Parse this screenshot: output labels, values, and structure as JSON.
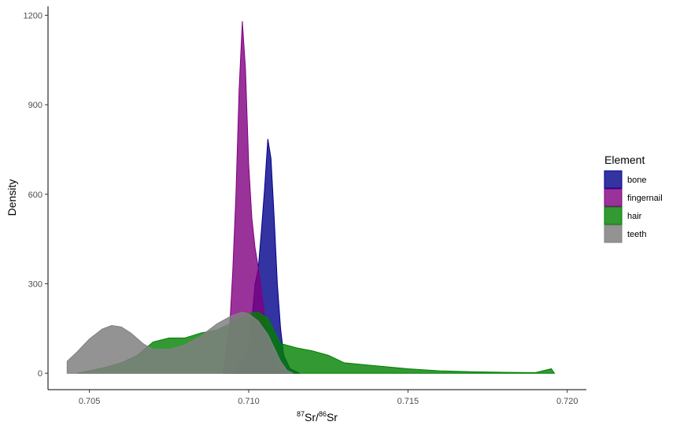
{
  "chart_data": {
    "type": "area",
    "subtype": "density",
    "xlabel": {
      "base": "Sr/",
      "base2": "Sr",
      "sup1": "87",
      "sup2": "86"
    },
    "ylabel": "Density",
    "xlim": [
      0.7037,
      0.7206
    ],
    "ylim": [
      -55,
      1230
    ],
    "x_ticks": [
      0.705,
      0.71,
      0.715,
      0.72
    ],
    "x_tick_labels": [
      "0.705",
      "0.710",
      "0.715",
      "0.720"
    ],
    "y_ticks": [
      0,
      300,
      600,
      900,
      1200
    ],
    "y_tick_labels": [
      "0",
      "300",
      "600",
      "900",
      "1200"
    ],
    "grid": false,
    "legend": {
      "title": "Element",
      "position": "right",
      "entries": [
        "bone",
        "fingernail",
        "hair",
        "teeth"
      ]
    },
    "series": [
      {
        "name": "bone",
        "color": "#00008B",
        "opacity": 0.8,
        "points": [
          [
            0.7095,
            0
          ],
          [
            0.7098,
            40
          ],
          [
            0.71,
            90
          ],
          [
            0.7101,
            180
          ],
          [
            0.7102,
            300
          ],
          [
            0.7103,
            350
          ],
          [
            0.7104,
            480
          ],
          [
            0.7105,
            620
          ],
          [
            0.7106,
            785
          ],
          [
            0.7107,
            720
          ],
          [
            0.7108,
            520
          ],
          [
            0.7109,
            300
          ],
          [
            0.711,
            150
          ],
          [
            0.7111,
            60
          ],
          [
            0.7113,
            15
          ],
          [
            0.7116,
            0
          ]
        ]
      },
      {
        "name": "fingernail",
        "color": "#800080",
        "opacity": 0.8,
        "points": [
          [
            0.7092,
            0
          ],
          [
            0.7093,
            80
          ],
          [
            0.7094,
            150
          ],
          [
            0.7095,
            340
          ],
          [
            0.7096,
            600
          ],
          [
            0.7097,
            950
          ],
          [
            0.7098,
            1180
          ],
          [
            0.7099,
            1020
          ],
          [
            0.71,
            700
          ],
          [
            0.7101,
            520
          ],
          [
            0.7102,
            420
          ],
          [
            0.7103,
            355
          ],
          [
            0.7104,
            280
          ],
          [
            0.7105,
            190
          ],
          [
            0.7106,
            110
          ],
          [
            0.7107,
            60
          ],
          [
            0.7108,
            30
          ],
          [
            0.711,
            10
          ],
          [
            0.7112,
            0
          ]
        ]
      },
      {
        "name": "hair",
        "color": "#008000",
        "opacity": 0.8,
        "points": [
          [
            0.7046,
            0
          ],
          [
            0.705,
            8
          ],
          [
            0.7055,
            20
          ],
          [
            0.706,
            35
          ],
          [
            0.7065,
            60
          ],
          [
            0.707,
            105
          ],
          [
            0.7075,
            118
          ],
          [
            0.708,
            118
          ],
          [
            0.7085,
            135
          ],
          [
            0.709,
            145
          ],
          [
            0.7095,
            170
          ],
          [
            0.71,
            200
          ],
          [
            0.7103,
            205
          ],
          [
            0.7106,
            185
          ],
          [
            0.711,
            100
          ],
          [
            0.7115,
            85
          ],
          [
            0.712,
            75
          ],
          [
            0.7125,
            60
          ],
          [
            0.713,
            35
          ],
          [
            0.714,
            25
          ],
          [
            0.715,
            15
          ],
          [
            0.716,
            8
          ],
          [
            0.717,
            5
          ],
          [
            0.718,
            3
          ],
          [
            0.719,
            2
          ],
          [
            0.7195,
            15
          ],
          [
            0.7196,
            0
          ]
        ]
      },
      {
        "name": "teeth",
        "color": "#808080",
        "opacity": 0.85,
        "points": [
          [
            0.7043,
            0
          ],
          [
            0.7043,
            40
          ],
          [
            0.7046,
            70
          ],
          [
            0.705,
            115
          ],
          [
            0.7054,
            148
          ],
          [
            0.7057,
            160
          ],
          [
            0.706,
            155
          ],
          [
            0.7063,
            135
          ],
          [
            0.7067,
            98
          ],
          [
            0.707,
            80
          ],
          [
            0.7075,
            80
          ],
          [
            0.708,
            95
          ],
          [
            0.7085,
            125
          ],
          [
            0.709,
            165
          ],
          [
            0.7095,
            195
          ],
          [
            0.7098,
            205
          ],
          [
            0.71,
            200
          ],
          [
            0.7103,
            175
          ],
          [
            0.7106,
            130
          ],
          [
            0.7108,
            85
          ],
          [
            0.711,
            40
          ],
          [
            0.7112,
            10
          ],
          [
            0.7114,
            0
          ]
        ]
      }
    ]
  }
}
